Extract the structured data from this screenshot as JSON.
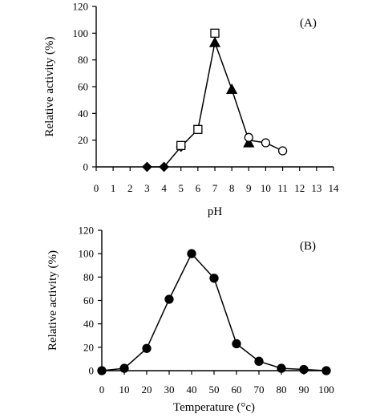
{
  "chart_data": [
    {
      "type": "line",
      "panel_label": "(A)",
      "xlabel": "pH",
      "ylabel": "Relative activity (%)",
      "xlim": [
        0,
        14
      ],
      "ylim": [
        0,
        120
      ],
      "x_ticks": [
        0,
        1,
        2,
        3,
        4,
        5,
        6,
        7,
        8,
        9,
        10,
        11,
        12,
        13,
        14
      ],
      "y_ticks": [
        0,
        20,
        40,
        60,
        80,
        100,
        120
      ],
      "grid": false,
      "legend": "none",
      "line_path": [
        [
          3,
          0
        ],
        [
          4,
          0
        ],
        [
          5,
          15
        ],
        [
          6,
          28
        ],
        [
          7,
          93
        ],
        [
          8,
          58
        ],
        [
          9,
          20
        ],
        [
          10,
          18
        ],
        [
          11,
          12
        ]
      ],
      "series": [
        {
          "marker": "diamond",
          "fill": "filled",
          "x": [
            3,
            4,
            5
          ],
          "y": [
            0,
            0,
            15
          ]
        },
        {
          "marker": "square",
          "fill": "open",
          "x": [
            5,
            6,
            7
          ],
          "y": [
            16,
            28,
            100
          ]
        },
        {
          "marker": "triangle",
          "fill": "filled",
          "x": [
            7,
            8,
            9
          ],
          "y": [
            93,
            58,
            18
          ]
        },
        {
          "marker": "circle",
          "fill": "open",
          "x": [
            9,
            10,
            11
          ],
          "y": [
            22,
            18,
            12
          ]
        }
      ]
    },
    {
      "type": "line",
      "panel_label": "(B)",
      "xlabel": "Temperature (°c)",
      "ylabel": "Relative activity (%)",
      "xlim": [
        0,
        100
      ],
      "ylim": [
        0,
        120
      ],
      "x_ticks": [
        0,
        10,
        20,
        30,
        40,
        50,
        60,
        70,
        80,
        90,
        100
      ],
      "y_ticks": [
        0,
        20,
        40,
        60,
        80,
        100,
        120
      ],
      "grid": false,
      "legend": "none",
      "line_path": [
        [
          0,
          0
        ],
        [
          10,
          2
        ],
        [
          20,
          19
        ],
        [
          30,
          61
        ],
        [
          40,
          100
        ],
        [
          50,
          79
        ],
        [
          60,
          23
        ],
        [
          70,
          8
        ],
        [
          80,
          2
        ],
        [
          90,
          1
        ],
        [
          100,
          0
        ]
      ],
      "series": [
        {
          "marker": "circle",
          "fill": "filled",
          "x": [
            0,
            10,
            20,
            30,
            40,
            50,
            60,
            70,
            80,
            90,
            100
          ],
          "y": [
            0,
            2,
            19,
            61,
            100,
            79,
            23,
            8,
            2,
            1,
            0
          ]
        }
      ]
    }
  ]
}
